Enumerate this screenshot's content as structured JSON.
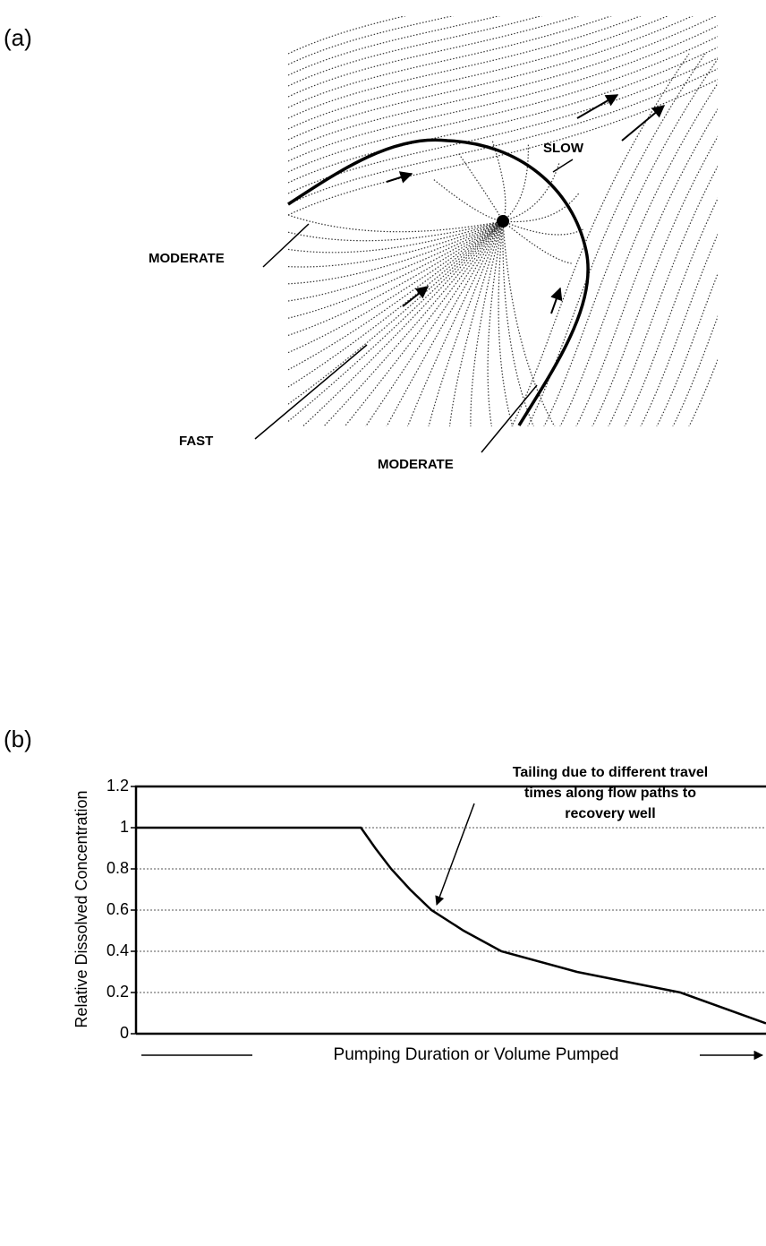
{
  "panel_a": {
    "label": "(a)",
    "slow": "SLOW",
    "moderate_left": "MODERATE",
    "fast": "FAST",
    "moderate_bottom": "MODERATE"
  },
  "chart_data": {
    "type": "line",
    "panel_label": "(b)",
    "ylabel": "Relative Dissolved Concentration",
    "xlabel": "Pumping Duration or Volume Pumped",
    "annotation": [
      "Tailing due to different travel",
      "times along flow paths to",
      "recovery well"
    ],
    "x": [
      0,
      0.357,
      0.38,
      0.405,
      0.435,
      0.469,
      0.52,
      0.58,
      0.7,
      0.864,
      1.0
    ],
    "values": [
      1,
      1,
      0.9,
      0.8,
      0.7,
      0.6,
      0.5,
      0.4,
      0.3,
      0.2,
      0.05
    ],
    "xlim": [
      0,
      1
    ],
    "ylim": [
      0,
      1.2
    ],
    "yticks": [
      0,
      0.2,
      0.4,
      0.6,
      0.8,
      1,
      1.2
    ],
    "grid": true,
    "color": "#000000"
  }
}
